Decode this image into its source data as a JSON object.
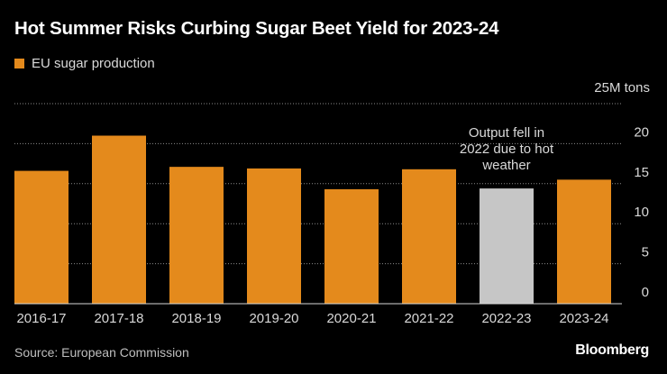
{
  "header": {
    "title": "Hot Summer Risks Curbing Sugar Beet Yield for 2023-24"
  },
  "legend": {
    "label": "EU sugar production"
  },
  "footer": {
    "source": "Source: European Commission",
    "brand": "Bloomberg"
  },
  "colors": {
    "bar": "#e48a1c",
    "highlight_bar": "#c6c6c6",
    "grid": "#8a8a8a"
  },
  "chart_data": {
    "type": "bar",
    "title": "Hot Summer Risks Curbing Sugar Beet Yield for 2023-24",
    "xlabel": "",
    "ylabel": "25M tons",
    "unit_label": "25M tons",
    "ylim": [
      0,
      25
    ],
    "yticks": [
      0,
      5,
      10,
      15,
      20
    ],
    "grid": true,
    "legend": "top-left",
    "categories": [
      "2016-17",
      "2017-18",
      "2018-19",
      "2019-20",
      "2020-21",
      "2021-22",
      "2022-23",
      "2023-24"
    ],
    "series": [
      {
        "name": "EU sugar production",
        "values": [
          16.6,
          21.0,
          17.1,
          16.9,
          14.3,
          16.8,
          14.4,
          15.5
        ]
      }
    ],
    "highlight_index": 6,
    "annotation": {
      "lines": [
        "Output fell in",
        "2022 due to hot",
        "weather"
      ],
      "category": "2022-23"
    }
  }
}
